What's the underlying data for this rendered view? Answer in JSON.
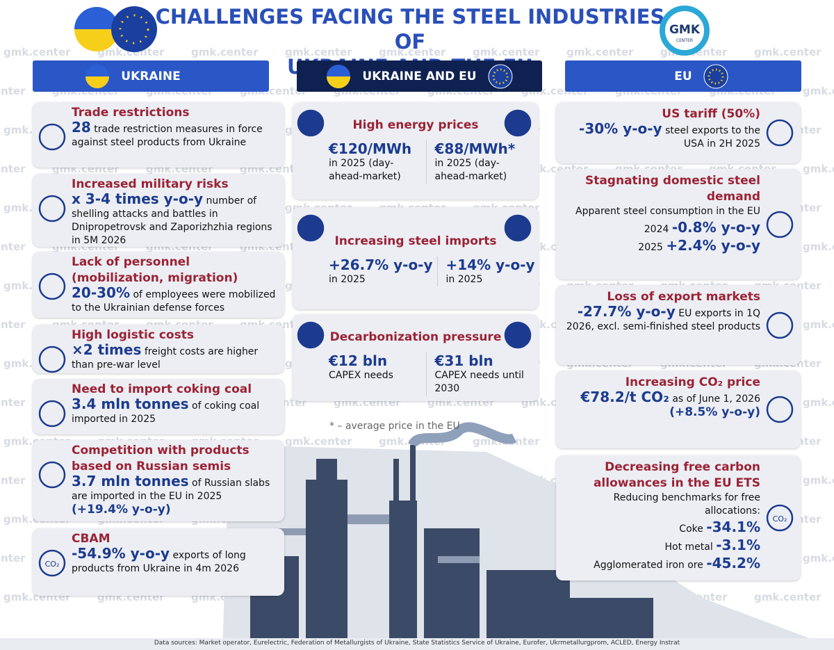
{
  "header": {
    "title_line1": "CHALLENGES FACING THE STEEL INDUSTRIES OF",
    "title_line2": "UKRAINE AND THE EU",
    "logo": "GMK",
    "logo_sub": "CENTER"
  },
  "watermark": "gmk.center",
  "columns": {
    "ukraine": "UKRAINE",
    "both": "UKRAINE AND EU",
    "eu": "EU"
  },
  "ukraine": [
    {
      "title": "Trade restrictions",
      "highlight": "28",
      "text": "trade restriction measures in force against steel products from Ukraine"
    },
    {
      "title": "Increased military risks",
      "highlight": "x 3-4 times y-o-y",
      "text": "number of shelling attacks and battles in Dnipropetrovsk and Zaporizhzhia regions in 5M 2026"
    },
    {
      "title": "Lack of personnel (mobilization, migration)",
      "highlight": "20-30%",
      "text": "of employees were mobilized to the Ukrainian defense forces"
    },
    {
      "title": "High logistic costs",
      "highlight": "×2 times",
      "text": "freight costs are higher than pre-war level"
    },
    {
      "title": "Need to import coking coal",
      "highlight": "3.4 mln tonnes",
      "text": "of coking coal imported in 2025"
    },
    {
      "title": "Competition with products based on Russian semis",
      "highlight": "3.7 mln tonnes",
      "text": "of Russian slabs are imported in the EU in 2025",
      "extra": "(+19.4% y-o-y)"
    },
    {
      "title": "CBAM",
      "highlight": "-54.9% y-o-y",
      "text": "exports of long products from Ukraine in 4m 2026",
      "icon_label": "CO₂"
    }
  ],
  "both": [
    {
      "title": "High energy prices",
      "items": [
        {
          "value": "€120/MWh",
          "text": "in 2025 (day-ahead-market)"
        },
        {
          "value": "€88/MWh*",
          "text": "in 2025 (day-ahead-market)"
        }
      ]
    },
    {
      "title": "Increasing steel imports",
      "items": [
        {
          "value": "+26.7% y-o-y",
          "text": "in 2025"
        },
        {
          "value": "+14% y-o-y",
          "text": "in 2025"
        }
      ]
    },
    {
      "title": "Decarbonization pressure",
      "items": [
        {
          "value": "€12 bln",
          "text": "CAPEX needs"
        },
        {
          "value": "€31 bln",
          "text": "CAPEX needs until 2030"
        }
      ]
    }
  ],
  "footnote": "* – average price in the EU",
  "eu": [
    {
      "title": "US tariff (50%)",
      "highlight": "-30% y-o-y",
      "text": "steel exports to the USA in 2H 2025"
    },
    {
      "title": "Stagnating domestic steel demand",
      "text": "Apparent steel consumption in the EU",
      "rows": [
        {
          "label": "2024",
          "value": "-0.8% y-o-y"
        },
        {
          "label": "2025",
          "value": "+2.4% y-o-y"
        }
      ]
    },
    {
      "title": "Loss of export markets",
      "highlight": "-27.7% y-o-y",
      "text": "EU exports in 1Q 2026, excl. semi-finished steel products"
    },
    {
      "title": "Increasing CO₂ price",
      "highlight": "€78.2/t CO₂",
      "text": "as of June 1, 2026",
      "extra": "(+8.5% y-o-y)"
    },
    {
      "title": "Decreasing free carbon allowances in the EU ETS",
      "text": "Reducing benchmarks for free allocations:",
      "rows": [
        {
          "label": "Coke",
          "value": "-34.1%"
        },
        {
          "label": "Hot metal",
          "value": "-3.1%"
        },
        {
          "label": "Agglomerated iron ore",
          "value": "-45.2%"
        }
      ],
      "icon_label": "CO₂"
    }
  ],
  "sources": "Data sources: Market operator, Eurelectric, Federation of Metallurgists of Ukraine, State Statistics Service of Ukraine, Eurofer, Ukrmetallurgprom, ACLED, Energy Instrat"
}
